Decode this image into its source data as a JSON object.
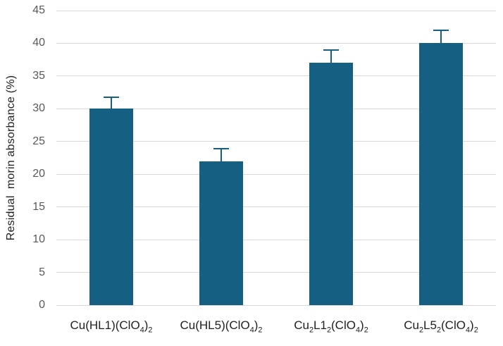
{
  "chart_data": {
    "type": "bar",
    "title": "",
    "xlabel": "",
    "ylabel": "Residual  morin absorbance (%)",
    "ylim": [
      0,
      45
    ],
    "yticks": [
      0,
      5,
      10,
      15,
      20,
      25,
      30,
      35,
      40,
      45
    ],
    "grid": true,
    "legend": false,
    "error_bars": "upper-only",
    "bar_color": "#156082",
    "error_bar_color": "#156082",
    "gridline_color": "#d9d9d9",
    "ytick_color": "#595959",
    "xlabel_color": "#202020",
    "categories_plain": [
      "Cu(HL1)(ClO4)2",
      "Cu(HL5)(ClO4)2",
      "Cu2L12(ClO4)2",
      "Cu2L52(ClO4)2"
    ],
    "categories": [
      {
        "parts": [
          {
            "text": "Cu(HL1)(ClO"
          },
          {
            "text": "4",
            "sub": true
          },
          {
            "text": ")"
          },
          {
            "text": "2",
            "sub": true
          }
        ]
      },
      {
        "parts": [
          {
            "text": "Cu(HL5)(ClO"
          },
          {
            "text": "4",
            "sub": true
          },
          {
            "text": ")"
          },
          {
            "text": "2",
            "sub": true
          }
        ]
      },
      {
        "parts": [
          {
            "text": "Cu"
          },
          {
            "text": "2",
            "sub": true
          },
          {
            "text": "L1"
          },
          {
            "text": "2",
            "sub": true
          },
          {
            "text": "(ClO"
          },
          {
            "text": "4",
            "sub": true
          },
          {
            "text": ")"
          },
          {
            "text": "2",
            "sub": true
          }
        ]
      },
      {
        "parts": [
          {
            "text": "Cu"
          },
          {
            "text": "2",
            "sub": true
          },
          {
            "text": "L5"
          },
          {
            "text": "2",
            "sub": true
          },
          {
            "text": "(ClO"
          },
          {
            "text": "4",
            "sub": true
          },
          {
            "text": ")"
          },
          {
            "text": "2",
            "sub": true
          }
        ]
      }
    ],
    "values": [
      30,
      22,
      37,
      40
    ],
    "errors_plus": [
      1.8,
      1.9,
      2.0,
      2.0
    ]
  }
}
